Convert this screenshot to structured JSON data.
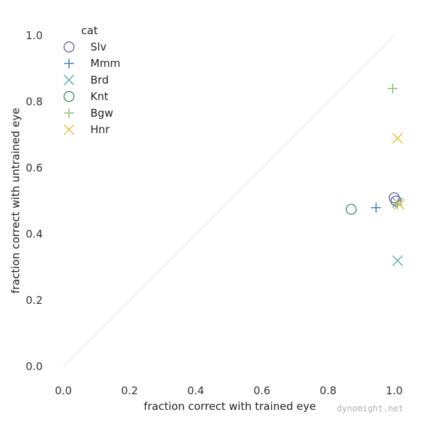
{
  "chart_data": {
    "type": "scatter",
    "xlabel": "fraction correct with trained eye",
    "ylabel": "fraction correct with untrained eye",
    "xlim": [
      0.0,
      1.0
    ],
    "ylim": [
      0.0,
      1.0
    ],
    "xticks": [
      "0.0",
      "0.2",
      "0.4",
      "0.6",
      "0.8",
      "1.0"
    ],
    "yticks": [
      "0.0",
      "0.2",
      "0.4",
      "0.6",
      "0.8",
      "1.0"
    ],
    "grid": false,
    "diagonal_reference_line": true,
    "legend": {
      "title": "cat",
      "placement": "top-left"
    },
    "series": [
      {
        "name": "Slv",
        "marker": "circle",
        "color": "#5b5a9a",
        "points": [
          [
            1.0,
            0.51
          ],
          [
            1.005,
            0.5
          ]
        ]
      },
      {
        "name": "Mmm",
        "marker": "plus",
        "color": "#3a75a8",
        "points": [
          [
            0.945,
            0.48
          ]
        ]
      },
      {
        "name": "Brd",
        "marker": "x",
        "color": "#4fb3a6",
        "points": [
          [
            1.01,
            0.32
          ],
          [
            1.01,
            0.495
          ]
        ]
      },
      {
        "name": "Knt",
        "marker": "circle",
        "color": "#2e8b63",
        "points": [
          [
            0.87,
            0.475
          ]
        ]
      },
      {
        "name": "Bgw",
        "marker": "plus",
        "color": "#7fc35d",
        "points": [
          [
            0.995,
            0.84
          ],
          [
            1.01,
            0.49
          ]
        ]
      },
      {
        "name": "Hnr",
        "marker": "x",
        "color": "#e9b93a",
        "points": [
          [
            1.01,
            0.69
          ],
          [
            1.015,
            0.49
          ]
        ]
      }
    ]
  },
  "watermark": "dynomight.net"
}
